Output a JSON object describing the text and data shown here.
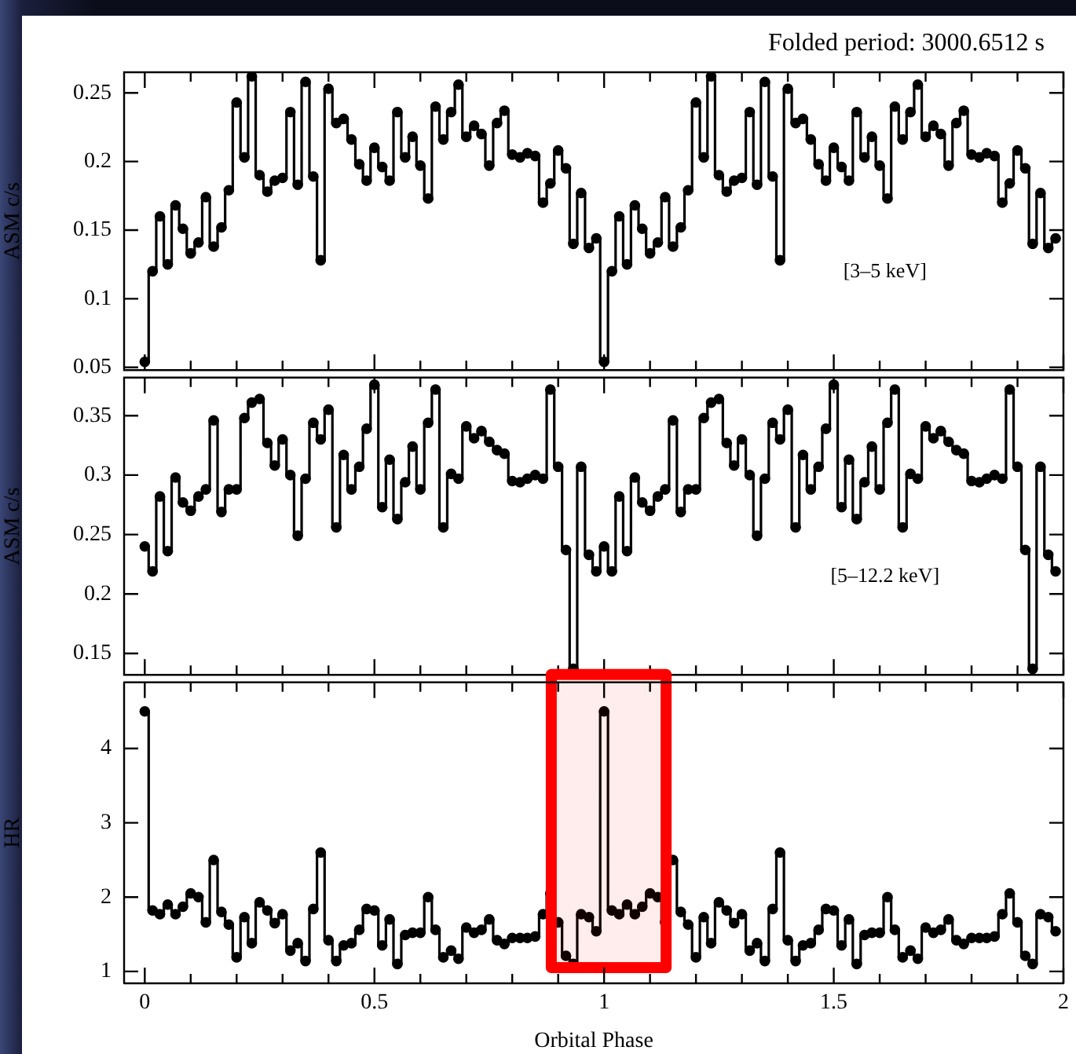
{
  "chart_data": [
    {
      "type": "step",
      "title": "Folded period: 3000.6512 s",
      "ylabel": "ASM c/s",
      "annotations": [
        "[3–5 keV]"
      ],
      "color": "#000000",
      "marker": "circle",
      "tick_labels": "y",
      "x": [
        0,
        0.017,
        0.033,
        0.05,
        0.067,
        0.083,
        0.1,
        0.117,
        0.133,
        0.15,
        0.167,
        0.183,
        0.2,
        0.217,
        0.233,
        0.25,
        0.267,
        0.283,
        0.3,
        0.317,
        0.333,
        0.35,
        0.367,
        0.383,
        0.4,
        0.417,
        0.433,
        0.45,
        0.467,
        0.483,
        0.5,
        0.517,
        0.533,
        0.55,
        0.567,
        0.583,
        0.6,
        0.617,
        0.633,
        0.65,
        0.667,
        0.683,
        0.7,
        0.717,
        0.733,
        0.75,
        0.767,
        0.783,
        0.8,
        0.817,
        0.833,
        0.85,
        0.867,
        0.883,
        0.9,
        0.917,
        0.933,
        0.95,
        0.967,
        0.983,
        1,
        1.017,
        1.033,
        1.05,
        1.067,
        1.083,
        1.1,
        1.117,
        1.133,
        1.15,
        1.167,
        1.183,
        1.2,
        1.217,
        1.233,
        1.25,
        1.267,
        1.283,
        1.3,
        1.317,
        1.333,
        1.35,
        1.367,
        1.383,
        1.4,
        1.417,
        1.433,
        1.45,
        1.467,
        1.483,
        1.5,
        1.517,
        1.533,
        1.55,
        1.567,
        1.583,
        1.6,
        1.617,
        1.633,
        1.65,
        1.667,
        1.683,
        1.7,
        1.717,
        1.733,
        1.75,
        1.767,
        1.783,
        1.8,
        1.817,
        1.833,
        1.85,
        1.867,
        1.883,
        1.9,
        1.917,
        1.933,
        1.95,
        1.967,
        1.983
      ],
      "values": [
        0.054,
        0.12,
        0.16,
        0.125,
        0.168,
        0.151,
        0.133,
        0.141,
        0.174,
        0.138,
        0.152,
        0.179,
        0.243,
        0.203,
        0.262,
        0.19,
        0.178,
        0.186,
        0.188,
        0.236,
        0.183,
        0.258,
        0.189,
        0.128,
        0.253,
        0.228,
        0.231,
        0.216,
        0.198,
        0.186,
        0.21,
        0.196,
        0.186,
        0.236,
        0.203,
        0.218,
        0.197,
        0.173,
        0.24,
        0.216,
        0.236,
        0.256,
        0.218,
        0.226,
        0.22,
        0.197,
        0.228,
        0.237,
        0.205,
        0.203,
        0.206,
        0.204,
        0.17,
        0.184,
        0.208,
        0.195,
        0.14,
        0.177,
        0.137,
        0.144,
        0.054,
        0.12,
        0.16,
        0.125,
        0.168,
        0.151,
        0.133,
        0.141,
        0.174,
        0.138,
        0.152,
        0.179,
        0.243,
        0.203,
        0.262,
        0.19,
        0.178,
        0.186,
        0.188,
        0.236,
        0.183,
        0.258,
        0.189,
        0.128,
        0.253,
        0.228,
        0.231,
        0.216,
        0.198,
        0.186,
        0.21,
        0.196,
        0.186,
        0.236,
        0.203,
        0.218,
        0.197,
        0.173,
        0.24,
        0.216,
        0.236,
        0.256,
        0.218,
        0.226,
        0.22,
        0.197,
        0.228,
        0.237,
        0.205,
        0.203,
        0.206,
        0.204,
        0.17,
        0.184,
        0.208,
        0.195,
        0.14,
        0.177,
        0.137,
        0.144
      ],
      "xlim": [
        -0.045,
        2
      ],
      "xticks": [
        0,
        {
          "value": 0.1,
          "label": null
        },
        {
          "value": 0.2,
          "label": null
        },
        {
          "value": 0.3,
          "label": null
        },
        {
          "value": 0.4,
          "label": null
        },
        0.5,
        {
          "value": 0.6,
          "label": null
        },
        {
          "value": 0.7,
          "label": null
        },
        {
          "value": 0.8,
          "label": null
        },
        {
          "value": 0.9,
          "label": null
        },
        1,
        {
          "value": 1.1,
          "label": null
        },
        {
          "value": 1.2,
          "label": null
        },
        {
          "value": 1.3,
          "label": null
        },
        {
          "value": 1.4,
          "label": null
        },
        1.5,
        {
          "value": 1.6,
          "label": null
        },
        {
          "value": 1.7,
          "label": null
        },
        {
          "value": 1.8,
          "label": null
        },
        {
          "value": 1.9,
          "label": null
        },
        2
      ],
      "ylim": [
        0.048,
        0.265
      ],
      "yticks": [
        0.05,
        0.1,
        0.15,
        0.2,
        0.25
      ]
    },
    {
      "type": "step",
      "ylabel": "ASM c/s",
      "annotations": [
        "[5–12.2 keV]"
      ],
      "color": "#000000",
      "marker": "circle",
      "tick_labels": "y",
      "x": [
        0,
        0.017,
        0.033,
        0.05,
        0.067,
        0.083,
        0.1,
        0.117,
        0.133,
        0.15,
        0.167,
        0.183,
        0.2,
        0.217,
        0.233,
        0.25,
        0.267,
        0.283,
        0.3,
        0.317,
        0.333,
        0.35,
        0.367,
        0.383,
        0.4,
        0.417,
        0.433,
        0.45,
        0.467,
        0.483,
        0.5,
        0.517,
        0.533,
        0.55,
        0.567,
        0.583,
        0.6,
        0.617,
        0.633,
        0.65,
        0.667,
        0.683,
        0.7,
        0.717,
        0.733,
        0.75,
        0.767,
        0.783,
        0.8,
        0.817,
        0.833,
        0.85,
        0.867,
        0.883,
        0.9,
        0.917,
        0.933,
        0.95,
        0.967,
        0.983,
        1,
        1.017,
        1.033,
        1.05,
        1.067,
        1.083,
        1.1,
        1.117,
        1.133,
        1.15,
        1.167,
        1.183,
        1.2,
        1.217,
        1.233,
        1.25,
        1.267,
        1.283,
        1.3,
        1.317,
        1.333,
        1.35,
        1.367,
        1.383,
        1.4,
        1.417,
        1.433,
        1.45,
        1.467,
        1.483,
        1.5,
        1.517,
        1.533,
        1.55,
        1.567,
        1.583,
        1.6,
        1.617,
        1.633,
        1.65,
        1.667,
        1.683,
        1.7,
        1.717,
        1.733,
        1.75,
        1.767,
        1.783,
        1.8,
        1.817,
        1.833,
        1.85,
        1.867,
        1.883,
        1.9,
        1.917,
        1.933,
        1.95,
        1.967,
        1.983
      ],
      "values": [
        0.24,
        0.219,
        0.282,
        0.236,
        0.298,
        0.277,
        0.27,
        0.282,
        0.288,
        0.346,
        0.269,
        0.288,
        0.288,
        0.348,
        0.361,
        0.364,
        0.327,
        0.308,
        0.33,
        0.3,
        0.249,
        0.297,
        0.344,
        0.33,
        0.355,
        0.256,
        0.317,
        0.288,
        0.307,
        0.339,
        0.376,
        0.273,
        0.313,
        0.263,
        0.294,
        0.324,
        0.288,
        0.344,
        0.372,
        0.256,
        0.301,
        0.297,
        0.341,
        0.331,
        0.337,
        0.328,
        0.321,
        0.318,
        0.295,
        0.294,
        0.297,
        0.3,
        0.297,
        0.372,
        0.307,
        0.237,
        0.137,
        0.307,
        0.233,
        0.219,
        0.24,
        0.219,
        0.282,
        0.236,
        0.298,
        0.277,
        0.27,
        0.282,
        0.288,
        0.346,
        0.269,
        0.288,
        0.288,
        0.348,
        0.361,
        0.364,
        0.327,
        0.308,
        0.33,
        0.3,
        0.249,
        0.297,
        0.344,
        0.33,
        0.355,
        0.256,
        0.317,
        0.288,
        0.307,
        0.339,
        0.376,
        0.273,
        0.313,
        0.263,
        0.294,
        0.324,
        0.288,
        0.344,
        0.372,
        0.256,
        0.301,
        0.297,
        0.341,
        0.331,
        0.337,
        0.328,
        0.321,
        0.318,
        0.295,
        0.294,
        0.297,
        0.3,
        0.297,
        0.372,
        0.307,
        0.237,
        0.137,
        0.307,
        0.233,
        0.219
      ],
      "xlim": [
        -0.045,
        2
      ],
      "xticks": [
        0,
        {
          "value": 0.1,
          "label": null
        },
        {
          "value": 0.2,
          "label": null
        },
        {
          "value": 0.3,
          "label": null
        },
        {
          "value": 0.4,
          "label": null
        },
        0.5,
        {
          "value": 0.6,
          "label": null
        },
        {
          "value": 0.7,
          "label": null
        },
        {
          "value": 0.8,
          "label": null
        },
        {
          "value": 0.9,
          "label": null
        },
        1,
        {
          "value": 1.1,
          "label": null
        },
        {
          "value": 1.2,
          "label": null
        },
        {
          "value": 1.3,
          "label": null
        },
        {
          "value": 1.4,
          "label": null
        },
        1.5,
        {
          "value": 1.6,
          "label": null
        },
        {
          "value": 1.7,
          "label": null
        },
        {
          "value": 1.8,
          "label": null
        },
        {
          "value": 1.9,
          "label": null
        },
        2
      ],
      "ylim": [
        0.132,
        0.382
      ],
      "yticks": [
        0.15,
        0.2,
        0.25,
        0.3,
        0.35
      ]
    },
    {
      "type": "step",
      "xlabel": "Orbital Phase",
      "ylabel": "HR",
      "color": "#000000",
      "marker": "circle",
      "bands": [
        {
          "axis": "x",
          "from": 0.885,
          "to": 1.135,
          "color": "#ff0000"
        }
      ],
      "x": [
        0,
        0.017,
        0.033,
        0.05,
        0.067,
        0.083,
        0.1,
        0.117,
        0.133,
        0.15,
        0.167,
        0.183,
        0.2,
        0.217,
        0.233,
        0.25,
        0.267,
        0.283,
        0.3,
        0.317,
        0.333,
        0.35,
        0.367,
        0.383,
        0.4,
        0.417,
        0.433,
        0.45,
        0.467,
        0.483,
        0.5,
        0.517,
        0.533,
        0.55,
        0.567,
        0.583,
        0.6,
        0.617,
        0.633,
        0.65,
        0.667,
        0.683,
        0.7,
        0.717,
        0.733,
        0.75,
        0.767,
        0.783,
        0.8,
        0.817,
        0.833,
        0.85,
        0.867,
        0.883,
        0.9,
        0.917,
        0.933,
        0.95,
        0.967,
        0.983,
        1,
        1.017,
        1.033,
        1.05,
        1.067,
        1.083,
        1.1,
        1.117,
        1.133,
        1.15,
        1.167,
        1.183,
        1.2,
        1.217,
        1.233,
        1.25,
        1.267,
        1.283,
        1.3,
        1.317,
        1.333,
        1.35,
        1.367,
        1.383,
        1.4,
        1.417,
        1.433,
        1.45,
        1.467,
        1.483,
        1.5,
        1.517,
        1.533,
        1.55,
        1.567,
        1.583,
        1.6,
        1.617,
        1.633,
        1.65,
        1.667,
        1.683,
        1.7,
        1.717,
        1.733,
        1.75,
        1.767,
        1.783,
        1.8,
        1.817,
        1.833,
        1.85,
        1.867,
        1.883,
        1.9,
        1.917,
        1.933,
        1.95,
        1.967,
        1.983
      ],
      "values": [
        4.5,
        1.82,
        1.77,
        1.9,
        1.77,
        1.87,
        2.05,
        2,
        1.66,
        2.5,
        1.8,
        1.63,
        1.19,
        1.73,
        1.38,
        1.93,
        1.82,
        1.65,
        1.77,
        1.28,
        1.38,
        1.14,
        1.84,
        2.6,
        1.42,
        1.14,
        1.35,
        1.38,
        1.56,
        1.84,
        1.82,
        1.35,
        1.7,
        1.1,
        1.49,
        1.52,
        1.52,
        2,
        1.56,
        1.19,
        1.28,
        1.17,
        1.59,
        1.52,
        1.56,
        1.7,
        1.42,
        1.37,
        1.45,
        1.45,
        1.45,
        1.47,
        1.77,
        2.05,
        1.66,
        1.21,
        1.1,
        1.77,
        1.73,
        1.54,
        4.5,
        1.82,
        1.77,
        1.9,
        1.77,
        1.87,
        2.05,
        2,
        1.66,
        2.5,
        1.8,
        1.63,
        1.19,
        1.73,
        1.38,
        1.93,
        1.82,
        1.65,
        1.77,
        1.28,
        1.38,
        1.14,
        1.84,
        2.6,
        1.42,
        1.14,
        1.35,
        1.38,
        1.56,
        1.84,
        1.82,
        1.35,
        1.7,
        1.1,
        1.49,
        1.52,
        1.52,
        2,
        1.56,
        1.19,
        1.28,
        1.17,
        1.59,
        1.52,
        1.56,
        1.7,
        1.42,
        1.37,
        1.45,
        1.45,
        1.45,
        1.47,
        1.77,
        2.05,
        1.66,
        1.21,
        1.1,
        1.77,
        1.73,
        1.54
      ],
      "xlim": [
        -0.045,
        2
      ],
      "xticks": [
        0,
        {
          "value": 0.1,
          "label": null
        },
        {
          "value": 0.2,
          "label": null
        },
        {
          "value": 0.3,
          "label": null
        },
        {
          "value": 0.4,
          "label": null
        },
        0.5,
        {
          "value": 0.6,
          "label": null
        },
        {
          "value": 0.7,
          "label": null
        },
        {
          "value": 0.8,
          "label": null
        },
        {
          "value": 0.9,
          "label": null
        },
        1,
        {
          "value": 1.1,
          "label": null
        },
        {
          "value": 1.2,
          "label": null
        },
        {
          "value": 1.3,
          "label": null
        },
        {
          "value": 1.4,
          "label": null
        },
        1.5,
        {
          "value": 1.6,
          "label": null
        },
        {
          "value": 1.7,
          "label": null
        },
        {
          "value": 1.8,
          "label": null
        },
        {
          "value": 1.9,
          "label": null
        },
        2
      ],
      "ylim": [
        0.84,
        4.89
      ],
      "yticks": [
        1,
        2,
        3,
        4
      ]
    }
  ]
}
